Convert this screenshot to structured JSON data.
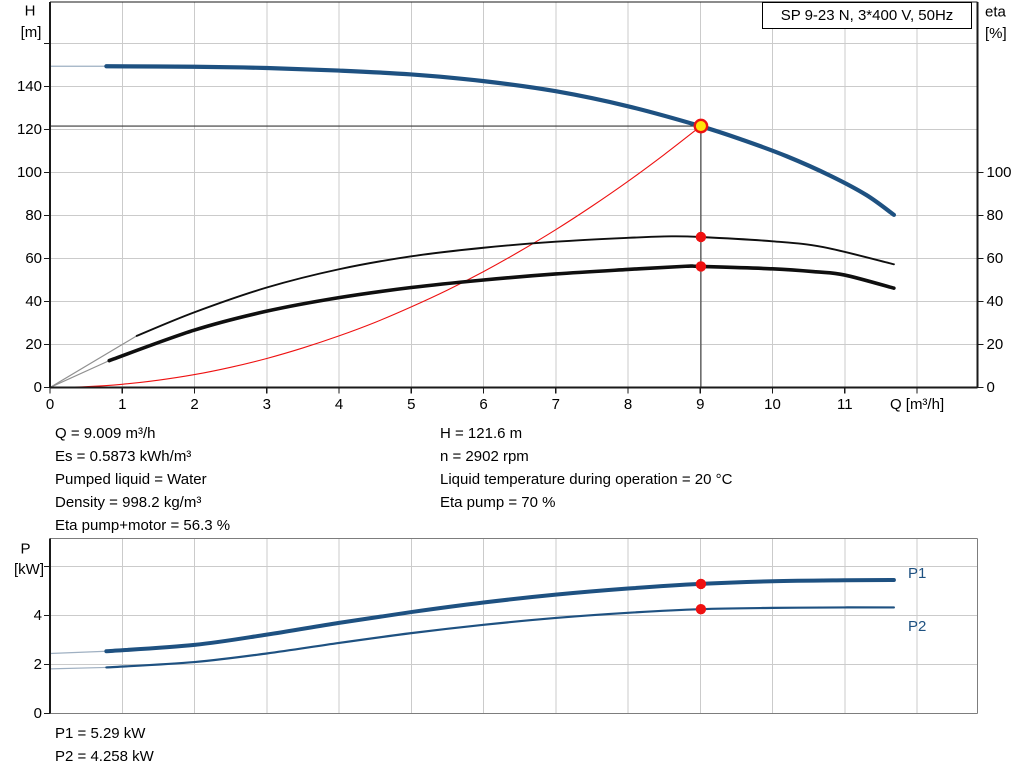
{
  "title_box": {
    "label": "SP 9-23 N, 3*400 V, 50Hz"
  },
  "info_panel": {
    "left": [
      "Q = 9.009 m³/h",
      "Es = 0.5873 kWh/m³",
      "Pumped liquid = Water",
      "Density = 998.2 kg/m³",
      "Eta pump+motor = 56.3 %"
    ],
    "right": [
      "H = 121.6 m",
      "n = 2902 rpm",
      "Liquid temperature during operation = 20 °C",
      "Eta pump = 70 %"
    ]
  },
  "power_readout": [
    "P1 = 5.29 kW",
    "P2 = 4.258 kW"
  ],
  "colors": {
    "curve_blue": "#1e5181",
    "curve_black": "#0f0f0f",
    "curve_red": "#ee1111",
    "lead_blue": "#9fb0c2",
    "lead_gray": "#909090",
    "marker_red": "#ee1111",
    "marker_yellow": "#ffe20a",
    "grid": "#cbcbcb",
    "frame_dark": "#1a1a1a",
    "frame_gray": "#7d7d7d",
    "guide": "#383838"
  },
  "chart_data": [
    {
      "type": "line",
      "xlabel": "Q [m³/h]",
      "ylabel": "H",
      "ylabel_unit": "[m]",
      "y2label": "eta",
      "y2label_unit": "[%]",
      "xlim": [
        0,
        12.837
      ],
      "ylim": [
        0,
        179.3
      ],
      "x_ticks": [
        {
          "v": 0,
          "t": "0"
        },
        {
          "v": 1,
          "t": "1"
        },
        {
          "v": 2,
          "t": "2"
        },
        {
          "v": 3,
          "t": "3"
        },
        {
          "v": 4,
          "t": "4"
        },
        {
          "v": 5,
          "t": "5"
        },
        {
          "v": 6,
          "t": "6"
        },
        {
          "v": 7,
          "t": "7"
        },
        {
          "v": 8,
          "t": "8"
        },
        {
          "v": 9,
          "t": "9"
        },
        {
          "v": 10,
          "t": "10"
        },
        {
          "v": 11,
          "t": "11"
        },
        {
          "v": 12,
          "t": ""
        }
      ],
      "y_ticks": [
        {
          "v": 0,
          "t": "0"
        },
        {
          "v": 20,
          "t": "20"
        },
        {
          "v": 40,
          "t": "40"
        },
        {
          "v": 60,
          "t": "60"
        },
        {
          "v": 80,
          "t": "80"
        },
        {
          "v": 100,
          "t": "100"
        },
        {
          "v": 120,
          "t": "120"
        },
        {
          "v": 140,
          "t": "140"
        },
        {
          "v": 160,
          "t": ""
        }
      ],
      "y2_ticks": [
        {
          "v": 0,
          "t": "0"
        },
        {
          "v": 20,
          "t": "20"
        },
        {
          "v": 40,
          "t": "40"
        },
        {
          "v": 60,
          "t": "60"
        },
        {
          "v": 80,
          "t": "80"
        },
        {
          "v": 100,
          "t": "100"
        }
      ],
      "x_grid": [
        1,
        2,
        3,
        4,
        5,
        6,
        7,
        8,
        9,
        10,
        11,
        12
      ],
      "y_grid": [
        20,
        40,
        60,
        80,
        100,
        120,
        140,
        160
      ],
      "series": [
        {
          "name": "head-curve-leadin",
          "color": "lead_blue",
          "width": 1.3,
          "smooth": false,
          "points": [
            [
              0,
              149.4
            ],
            [
              0.78,
              149.4
            ]
          ]
        },
        {
          "name": "head-curve",
          "color": "curve_blue",
          "width": 4.2,
          "points": [
            [
              0.78,
              149.4
            ],
            [
              2,
              149.2
            ],
            [
              3,
              148.6
            ],
            [
              4,
              147.4
            ],
            [
              5,
              145.6
            ],
            [
              6,
              142.5
            ],
            [
              7,
              137.8
            ],
            [
              8,
              130.8
            ],
            [
              9,
              121.6
            ],
            [
              9.6,
              115
            ],
            [
              10.2,
              107.5
            ],
            [
              10.8,
              98.5
            ],
            [
              11.3,
              89.5
            ],
            [
              11.68,
              80.3
            ]
          ]
        },
        {
          "name": "system-curve",
          "color": "curve_red",
          "width": 1.1,
          "points": [
            [
              0,
              0
            ],
            [
              0.5,
              0.4
            ],
            [
              1,
              1.5
            ],
            [
              1.5,
              3.4
            ],
            [
              2,
              6
            ],
            [
              2.5,
              9.4
            ],
            [
              3,
              13.5
            ],
            [
              3.5,
              18.4
            ],
            [
              4,
              24
            ],
            [
              4.5,
              30.3
            ],
            [
              5,
              37.5
            ],
            [
              5.5,
              45.3
            ],
            [
              6,
              53.9
            ],
            [
              6.5,
              63.3
            ],
            [
              7,
              73.4
            ],
            [
              7.5,
              84.3
            ],
            [
              8,
              95.9
            ],
            [
              8.5,
              108.3
            ],
            [
              9.009,
              121.6
            ]
          ]
        },
        {
          "name": "eta-pump-leadin",
          "color": "lead_gray",
          "width": 1.2,
          "smooth": false,
          "points": [
            [
              0,
              0
            ],
            [
              1.2,
              24
            ]
          ]
        },
        {
          "name": "eta-pump-curve",
          "color": "curve_black",
          "width": 1.9,
          "points": [
            [
              1.2,
              24
            ],
            [
              2,
              35
            ],
            [
              3,
              46.5
            ],
            [
              4,
              55
            ],
            [
              5,
              61
            ],
            [
              6,
              65
            ],
            [
              7,
              67.8
            ],
            [
              8,
              69.6
            ],
            [
              8.6,
              70.3
            ],
            [
              9,
              70
            ],
            [
              10,
              68
            ],
            [
              10.7,
              65.3
            ],
            [
              11.68,
              57.3
            ]
          ]
        },
        {
          "name": "eta-pump-motor-leadin",
          "color": "lead_gray",
          "width": 1.2,
          "smooth": false,
          "points": [
            [
              0,
              0
            ],
            [
              0.82,
              12.5
            ]
          ]
        },
        {
          "name": "eta-pump-motor-curve",
          "color": "curve_black",
          "width": 3.6,
          "points": [
            [
              0.82,
              12.5
            ],
            [
              2,
              26.7
            ],
            [
              3,
              35.5
            ],
            [
              4,
              41.8
            ],
            [
              5,
              46.5
            ],
            [
              6,
              50
            ],
            [
              7,
              52.8
            ],
            [
              8,
              54.9
            ],
            [
              8.8,
              56.4
            ],
            [
              9,
              56.3
            ],
            [
              10,
              55.2
            ],
            [
              10.6,
              53.8
            ],
            [
              11,
              52.3
            ],
            [
              11.68,
              46.2
            ]
          ]
        }
      ],
      "guides": {
        "h": {
          "y": 121.6,
          "x0": 0,
          "x1": 9.009
        },
        "v": {
          "x": 9.009,
          "y0": 0,
          "y1": 121.6
        }
      },
      "markers": [
        {
          "name": "duty-point",
          "x": 9.009,
          "y": 121.6,
          "style": "duty"
        },
        {
          "name": "eta-pump-point",
          "x": 9.009,
          "y": 70,
          "style": "dot"
        },
        {
          "name": "eta-pump-motor-point",
          "x": 9.009,
          "y": 56.3,
          "style": "dot"
        }
      ]
    },
    {
      "type": "line",
      "xlabel": "",
      "ylabel": "P",
      "ylabel_unit": "[kW]",
      "xlim": [
        0,
        12.837
      ],
      "ylim": [
        0,
        7.143
      ],
      "x_ticks": [],
      "y_ticks": [
        {
          "v": 0,
          "t": "0"
        },
        {
          "v": 2,
          "t": "2"
        },
        {
          "v": 4,
          "t": "4"
        },
        {
          "v": 6,
          "t": ""
        }
      ],
      "x_grid": [
        1,
        2,
        3,
        4,
        5,
        6,
        7,
        8,
        9,
        10,
        11,
        12
      ],
      "y_grid": [
        2,
        4,
        6
      ],
      "series": [
        {
          "name": "p1-curve-leadin",
          "color": "lead_blue",
          "width": 1.3,
          "smooth": false,
          "points": [
            [
              0,
              2.45
            ],
            [
              0.78,
              2.54
            ]
          ]
        },
        {
          "name": "p1-curve",
          "label": "P1",
          "color": "curve_blue",
          "width": 4.0,
          "points": [
            [
              0.78,
              2.54
            ],
            [
              2,
              2.8
            ],
            [
              3,
              3.22
            ],
            [
              4,
              3.7
            ],
            [
              5,
              4.14
            ],
            [
              6,
              4.53
            ],
            [
              7,
              4.85
            ],
            [
              8,
              5.1
            ],
            [
              9,
              5.29
            ],
            [
              10,
              5.4
            ],
            [
              11,
              5.44
            ],
            [
              11.68,
              5.45
            ]
          ]
        },
        {
          "name": "p2-curve-leadin",
          "color": "lead_blue",
          "width": 1.2,
          "smooth": false,
          "points": [
            [
              0,
              1.82
            ],
            [
              0.78,
              1.88
            ]
          ]
        },
        {
          "name": "p2-curve",
          "label": "P2",
          "color": "curve_blue",
          "width": 2.2,
          "points": [
            [
              0.78,
              1.88
            ],
            [
              2,
              2.1
            ],
            [
              3,
              2.45
            ],
            [
              4,
              2.88
            ],
            [
              5,
              3.28
            ],
            [
              6,
              3.62
            ],
            [
              7,
              3.9
            ],
            [
              8,
              4.11
            ],
            [
              9,
              4.258
            ],
            [
              10,
              4.31
            ],
            [
              11,
              4.33
            ],
            [
              11.68,
              4.33
            ]
          ]
        }
      ],
      "guides": null,
      "markers": [
        {
          "name": "p1-point",
          "x": 9.009,
          "y": 5.29,
          "style": "dot"
        },
        {
          "name": "p2-point",
          "x": 9.009,
          "y": 4.258,
          "style": "dot"
        }
      ]
    }
  ]
}
